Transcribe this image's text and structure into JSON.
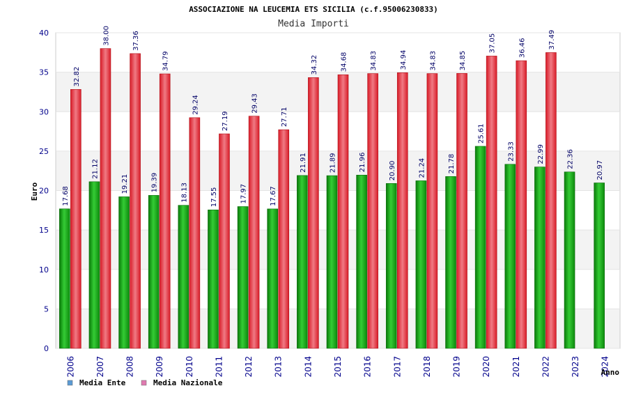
{
  "chart_data": {
    "type": "bar",
    "title": "ASSOCIAZIONE NA LEUCEMIA ETS SICILIA (c.f.95006230833)",
    "subtitle": "Media Importi",
    "xlabel": "Anno",
    "ylabel": "Euro",
    "ylim": [
      0,
      40
    ],
    "yticks": [
      "0",
      "5",
      "10",
      "15",
      "20",
      "25",
      "30",
      "35",
      "40"
    ],
    "categories": [
      "2006",
      "2007",
      "2008",
      "2009",
      "2010",
      "2011",
      "2012",
      "2013",
      "2014",
      "2015",
      "2016",
      "2017",
      "2018",
      "2019",
      "2020",
      "2021",
      "2022",
      "2023",
      "2024"
    ],
    "series": [
      {
        "name": "Media Ente",
        "color": "#22aa22",
        "legend_color": "#5b9bd5",
        "values": [
          17.68,
          21.12,
          19.21,
          19.39,
          18.13,
          17.55,
          17.97,
          17.67,
          21.91,
          21.89,
          21.96,
          20.9,
          21.24,
          21.78,
          25.61,
          23.33,
          22.99,
          22.36,
          20.97
        ],
        "labels": [
          "17.68",
          "21.12",
          "19.21",
          "19.39",
          "18.13",
          "17.55",
          "17.97",
          "17.67",
          "21.91",
          "21.89",
          "21.96",
          "20.90",
          "21.24",
          "21.78",
          "25.61",
          "23.33",
          "22.99",
          "22.36",
          "20.97"
        ]
      },
      {
        "name": "Media Nazionale",
        "color": "#e8303a",
        "legend_color": "#e07ab0",
        "values": [
          32.82,
          38.0,
          37.36,
          34.79,
          29.24,
          27.19,
          29.43,
          27.71,
          34.32,
          34.68,
          34.83,
          34.94,
          34.83,
          34.85,
          37.05,
          36.46,
          37.49,
          null,
          null
        ],
        "labels": [
          "32.82",
          "38.00",
          "37.36",
          "34.79",
          "29.24",
          "27.19",
          "29.43",
          "27.71",
          "34.32",
          "34.68",
          "34.83",
          "34.94",
          "34.83",
          "34.85",
          "37.05",
          "36.46",
          "37.49",
          null,
          null
        ]
      }
    ],
    "legend_position": "bottom-left",
    "grid": true
  }
}
